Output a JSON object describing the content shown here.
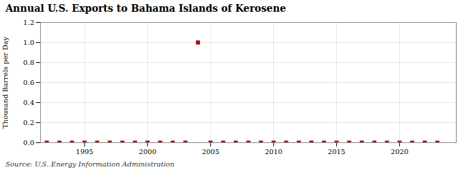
{
  "chart_data": {
    "type": "scatter",
    "title": "Annual U.S. Exports to Bahama Islands of Kerosene",
    "ylabel": "Thousand Barrels per Day",
    "source": "Source: U.S. Energy Information Administration",
    "x": [
      1992,
      1993,
      1994,
      1995,
      1996,
      1997,
      1998,
      1999,
      2000,
      2001,
      2002,
      2003,
      2004,
      2005,
      2006,
      2007,
      2008,
      2009,
      2010,
      2011,
      2012,
      2013,
      2014,
      2015,
      2016,
      2017,
      2018,
      2019,
      2020,
      2021,
      2022,
      2023
    ],
    "values": [
      0.0,
      0.0,
      0.0,
      0.0,
      0.0,
      0.0,
      0.0,
      0.0,
      0.0,
      0.0,
      0.0,
      0.0,
      1.0,
      0.0,
      0.0,
      0.0,
      0.0,
      0.0,
      0.0,
      0.0,
      0.0,
      0.0,
      0.0,
      0.0,
      0.0,
      0.0,
      0.0,
      0.0,
      0.0,
      0.0,
      0.0,
      0.0
    ],
    "color": "#aa1111",
    "marker": "square",
    "xlim": [
      1991.5,
      2024.5
    ],
    "xticks": [
      1995,
      2000,
      2005,
      2010,
      2015,
      2020
    ],
    "ylim": [
      0,
      1.2
    ],
    "yticks": [
      {
        "value": 0,
        "label": "0.0"
      },
      0.2,
      0.4,
      0.6,
      0.8,
      {
        "value": 1,
        "label": "1.0"
      },
      1.2
    ],
    "grid": true
  }
}
